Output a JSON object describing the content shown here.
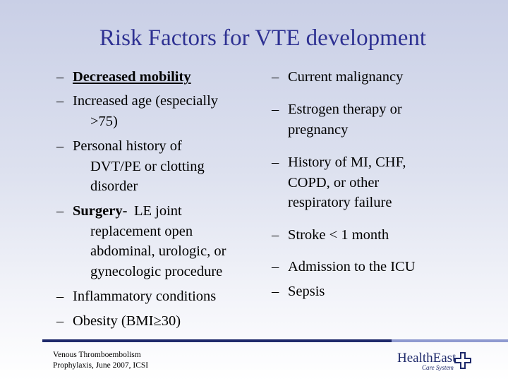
{
  "title": "Risk Factors for VTE development",
  "left": [
    {
      "bullet": "–",
      "lines": [
        "Decreased mobility"
      ],
      "emphasis": "bold-underline"
    },
    {
      "bullet": "–",
      "lines": [
        "Increased age (especially",
        ">75)"
      ]
    },
    {
      "bullet": "–",
      "lines": [
        "Personal history of",
        "DVT/PE or clotting",
        "disorder"
      ]
    },
    {
      "bullet": "–",
      "lead": "Surgery-",
      "lines": [
        "LE joint",
        "replacement open",
        "abdominal, urologic, or",
        "gynecologic procedure"
      ]
    },
    {
      "bullet": "–",
      "lines": [
        "Inflammatory conditions"
      ]
    },
    {
      "bullet": "–",
      "lines": [
        "Obesity (BMI≥30)"
      ]
    }
  ],
  "right": [
    {
      "bullet": "–",
      "lines": [
        "Current malignancy"
      ]
    },
    {
      "bullet": "–",
      "lines": [
        "Estrogen therapy or",
        "pregnancy"
      ]
    },
    {
      "bullet": "–",
      "lines": [
        "History of MI, CHF,",
        "COPD, or other",
        "respiratory failure"
      ]
    },
    {
      "bullet": "–",
      "lines": [
        "Stroke < 1 month"
      ]
    },
    {
      "bullet": "–",
      "lines": [
        "Admission to the ICU"
      ]
    },
    {
      "bullet": "–",
      "lines": [
        "Sepsis"
      ]
    }
  ],
  "footer": {
    "lines": [
      "Venous Thromboembolism",
      "Prophylaxis, June 2007, ICSI"
    ]
  },
  "logo": {
    "name": "HealthEast",
    "tagline": "Care System"
  }
}
